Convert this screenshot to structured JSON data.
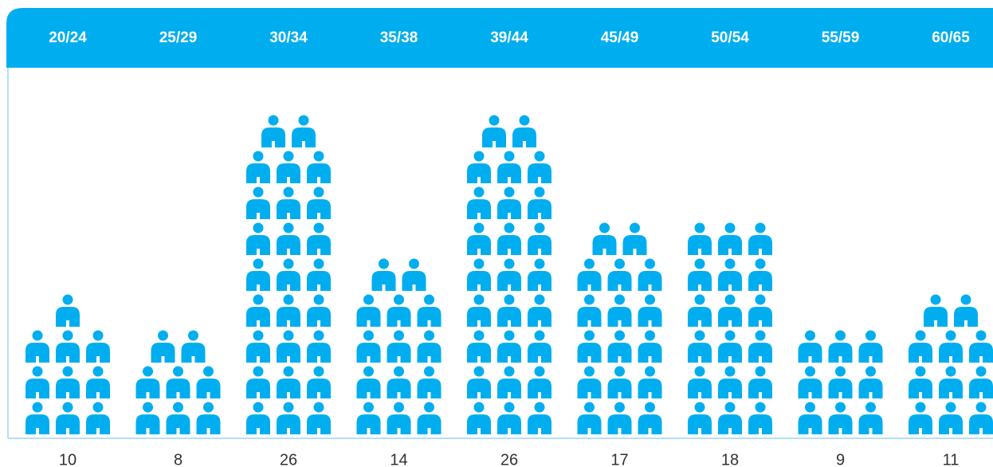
{
  "chart_data": {
    "type": "pictogram",
    "categories": [
      "20/24",
      "25/29",
      "30/34",
      "35/38",
      "39/44",
      "45/49",
      "50/54",
      "55/59",
      "60/65"
    ],
    "values": [
      10,
      8,
      26,
      14,
      26,
      17,
      18,
      9,
      11
    ],
    "color": "#00aeef"
  }
}
